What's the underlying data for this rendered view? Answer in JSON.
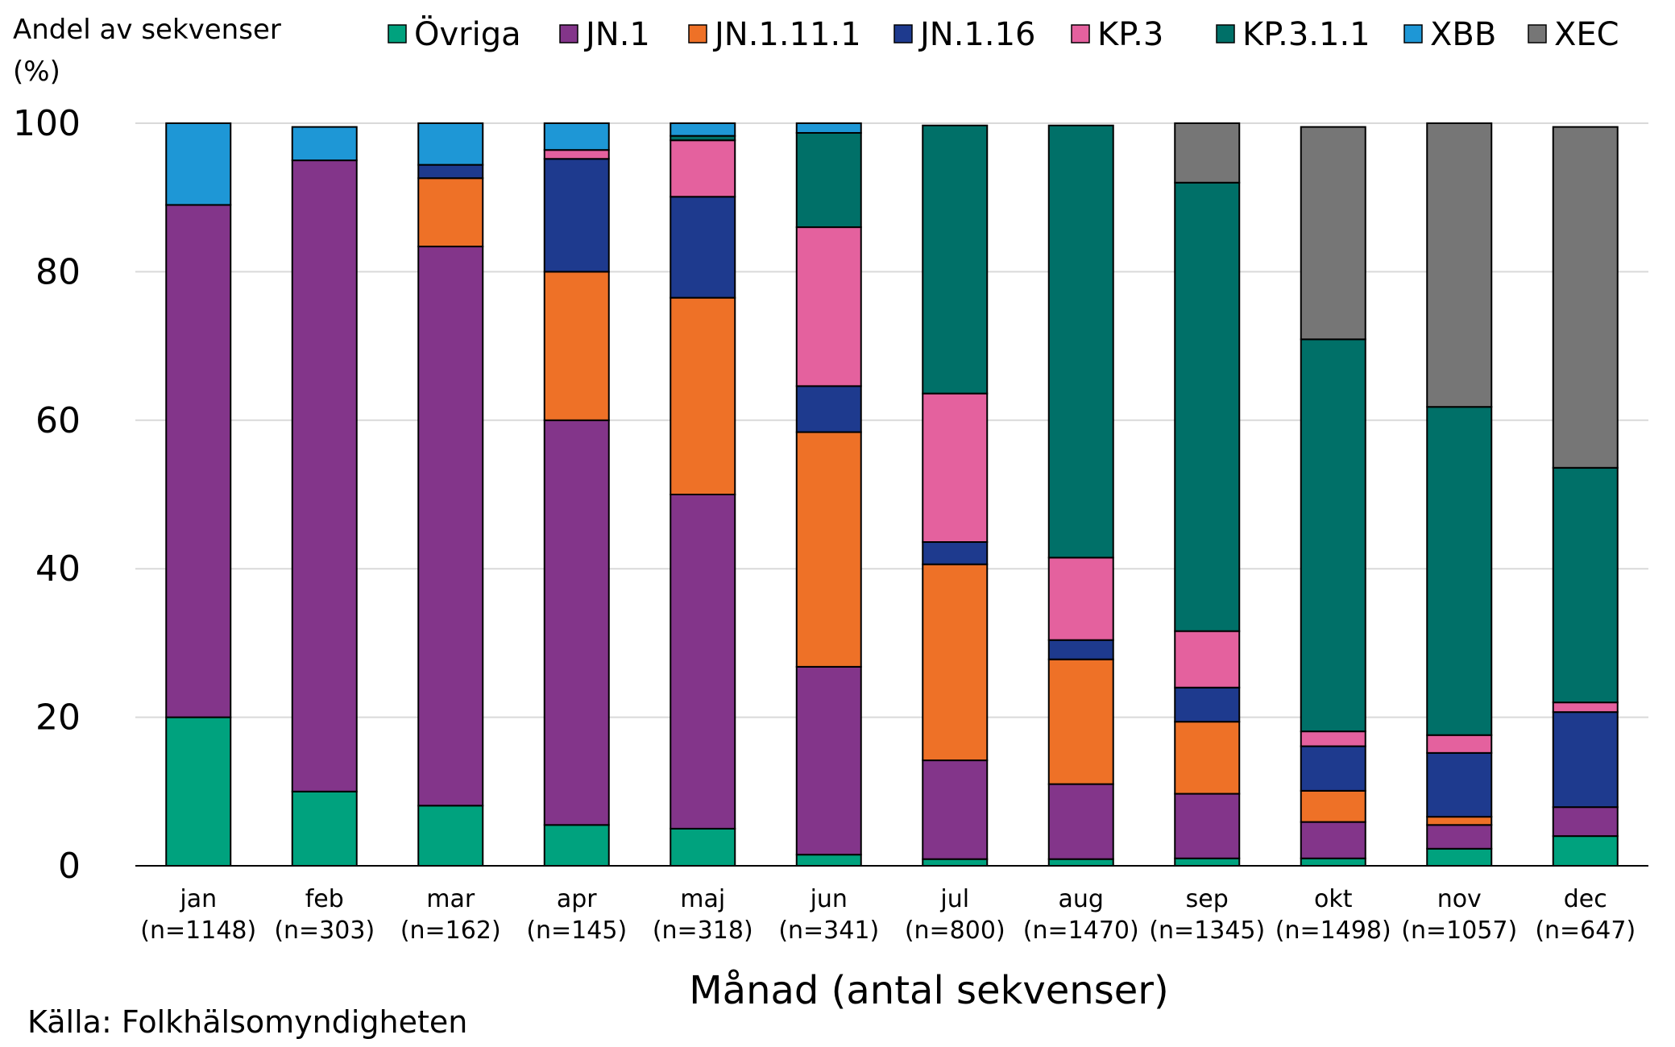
{
  "chart_data": {
    "type": "bar",
    "stacked": true,
    "ylabel": "Andel av sekvenser (%)",
    "ylabel_lines": [
      "Andel av sekvenser",
      "(%)"
    ],
    "xlabel": "Månad (antal sekvenser)",
    "source": "Källa: Folkhälsomyndigheten",
    "ylim": [
      0,
      100
    ],
    "yticks": [
      0,
      20,
      40,
      60,
      80,
      100
    ],
    "grid": true,
    "legend_position": "top",
    "categories": [
      "jan",
      "feb",
      "mar",
      "apr",
      "maj",
      "jun",
      "jul",
      "aug",
      "sep",
      "okt",
      "nov",
      "dec"
    ],
    "counts": [
      "(n=1148)",
      "(n=303)",
      "(n=162)",
      "(n=145)",
      "(n=318)",
      "(n=341)",
      "(n=800)",
      "(n=1470)",
      "(n=1345)",
      "(n=1498)",
      "(n=1057)",
      "(n=647)"
    ],
    "series": [
      {
        "name": "Övriga",
        "color": "#00A27E",
        "values": [
          20,
          10,
          8.1,
          5.5,
          5,
          1.5,
          0.9,
          0.9,
          1,
          1,
          2.3,
          4
        ]
      },
      {
        "name": "JN.1",
        "color": "#83358A",
        "values": [
          69,
          85,
          75.3,
          54.5,
          45,
          25.3,
          13.3,
          10.1,
          8.7,
          4.9,
          3.2,
          3.9
        ]
      },
      {
        "name": "JN.1.11.1",
        "color": "#EE7127",
        "values": [
          0,
          0,
          9.2,
          20,
          26.5,
          31.6,
          26.4,
          16.8,
          9.7,
          4.2,
          1.1,
          0
        ]
      },
      {
        "name": "JN.1.16",
        "color": "#1E3A8E",
        "values": [
          0,
          0,
          1.8,
          15.2,
          13.6,
          6.2,
          3,
          2.6,
          4.6,
          6,
          8.6,
          12.8
        ]
      },
      {
        "name": "KP.3",
        "color": "#E4619E",
        "values": [
          0,
          0,
          0,
          1.2,
          7.6,
          21.4,
          20,
          11.1,
          7.6,
          2,
          2.4,
          1.3
        ]
      },
      {
        "name": "KP.3.1.1",
        "color": "#007068",
        "values": [
          0,
          0,
          0,
          0,
          0.6,
          12.7,
          36.1,
          58.2,
          60.4,
          52.8,
          44.2,
          31.6
        ]
      },
      {
        "name": "XBB",
        "color": "#1E97D6",
        "values": [
          11,
          4.5,
          5.6,
          3.6,
          1.7,
          1.3,
          0,
          0,
          0,
          0,
          0,
          0
        ]
      },
      {
        "name": "XEC",
        "color": "#767676",
        "values": [
          0,
          0,
          0,
          0,
          0,
          0,
          0,
          0,
          8,
          28.6,
          38.2,
          45.9
        ]
      }
    ]
  }
}
